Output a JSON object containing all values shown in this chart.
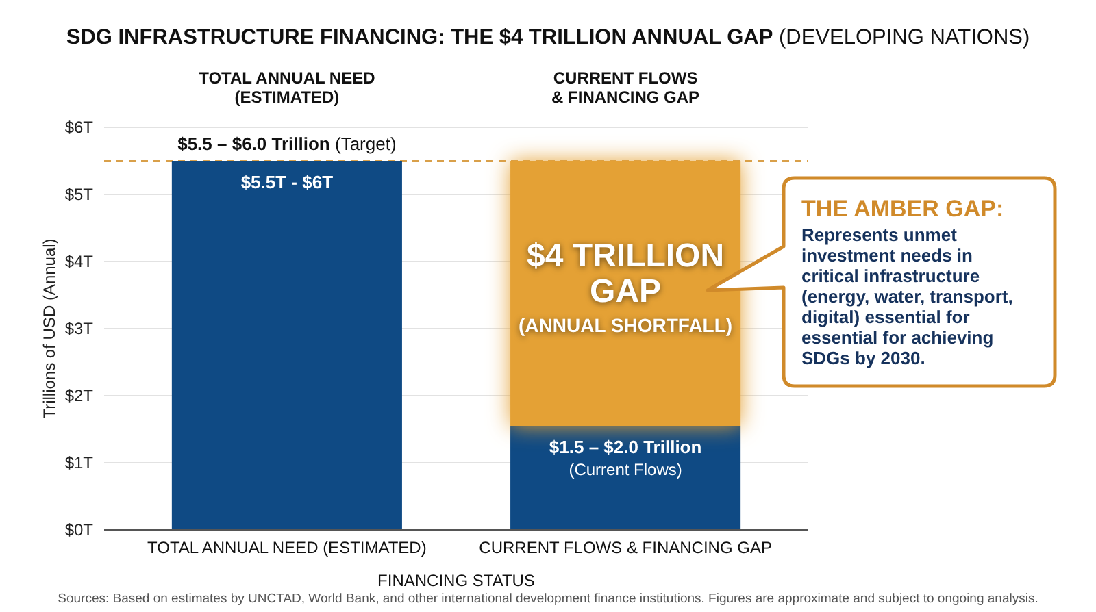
{
  "chart_data": {
    "type": "bar",
    "title": "SDG INFRASTRUCTURE FINANCING: THE $4 TRILLION ANNUAL GAP (DEVELOPING NATIONS)",
    "xlabel": "FINANCING STATUS",
    "ylabel": "Trillions of USD (Annual)",
    "categories": [
      "TOTAL ANNUAL NEED (ESTIMATED)",
      "CURRENT FLOWS & FINANCING GAP"
    ],
    "stacked": true,
    "series": [
      {
        "color": "#0f4a84",
        "values": [
          5.5,
          1.55
        ],
        "value_labels": [
          null,
          "$1.5 – $2.0 Trillion\n(Current Flows)"
        ]
      },
      {
        "color": "#e4a135",
        "values": [
          null,
          3.95
        ],
        "value_labels": [
          null,
          "$4 TRILLION\nGAP\n(ANNUAL SHORTFALL)"
        ]
      }
    ],
    "ylim": [
      0,
      6
    ],
    "yticks": [
      {
        "value": 0,
        "label": "$0T"
      },
      {
        "value": 1,
        "label": "$1T"
      },
      {
        "value": 2,
        "label": "$2T"
      },
      {
        "value": 3,
        "label": "$3T"
      },
      {
        "value": 4,
        "label": "$4T"
      },
      {
        "value": 5,
        "label": "$5T"
      },
      {
        "value": 6,
        "label": "$6T"
      }
    ],
    "grid": "y",
    "ref_lines": [
      {
        "axis": "y",
        "value": 5.5,
        "label": "$5.5 – $6.0 Trillion (Target)",
        "color": "#d9a04a",
        "line_style": "dashed"
      }
    ],
    "annotations": [
      "TOTAL ANNUAL NEED\n(ESTIMATED)",
      "CURRENT FLOWS\n& FINANCING GAP",
      "$5.5T - $6T",
      "THE AMBER GAP:\nRepresents unmet\ninvestment needs in\ncritical infrastructure\n(energy, water, transport,\ndigital) essential for\nessential for achieving\nSDGs by 2030.",
      "Sources: Based on estimates by UNCTAD, World Bank, and other international development finance institutions. Figures are approximate and subject to ongoing analysis."
    ]
  }
}
